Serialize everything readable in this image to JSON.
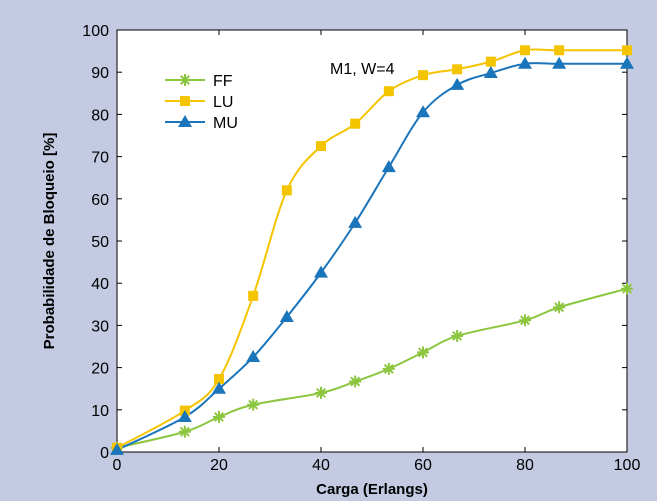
{
  "chart_data": {
    "type": "line",
    "xlabel": "Carga (Erlangs)",
    "ylabel": "Probabilidade de Bloqueio [%]",
    "xlim": [
      0,
      100
    ],
    "ylim": [
      0,
      100
    ],
    "xticks": [
      0,
      20,
      40,
      60,
      80,
      100
    ],
    "yticks": [
      0,
      10,
      20,
      30,
      40,
      50,
      60,
      70,
      80,
      90,
      100
    ],
    "annotation": "M1, W=4",
    "grid": false,
    "legend_position": "top-left",
    "series": [
      {
        "name": "FF",
        "color": "#8cc63f",
        "marker": "asterisk",
        "x": [
          0,
          13.3,
          20,
          26.7,
          40,
          46.7,
          53.3,
          60,
          66.7,
          80,
          86.7,
          100
        ],
        "y": [
          1,
          4.8,
          8.3,
          11.2,
          14,
          16.7,
          19.7,
          23.6,
          27.5,
          31.2,
          34.3,
          38.7
        ]
      },
      {
        "name": "LU",
        "color": "#f5c400",
        "marker": "square",
        "x": [
          0,
          13.3,
          20,
          26.7,
          33.3,
          40,
          46.7,
          53.3,
          60,
          66.7,
          73.3,
          80,
          86.7,
          100
        ],
        "y": [
          1,
          9.8,
          17.3,
          37,
          62,
          72.5,
          77.8,
          85.5,
          89.3,
          90.7,
          92.5,
          95.2,
          95.2,
          95.2
        ]
      },
      {
        "name": "MU",
        "color": "#1b75bb",
        "marker": "triangle",
        "x": [
          0,
          13.3,
          20,
          26.7,
          33.3,
          40,
          46.7,
          53.3,
          60,
          66.7,
          73.3,
          80,
          86.7,
          100
        ],
        "y": [
          0.5,
          8.3,
          15,
          22.5,
          32,
          42.5,
          54.3,
          67.5,
          80.5,
          87,
          89.8,
          92,
          92,
          92
        ]
      }
    ]
  }
}
